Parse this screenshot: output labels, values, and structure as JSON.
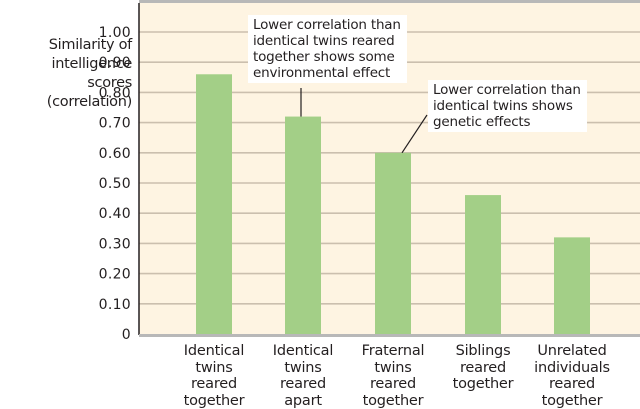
{
  "chart_data": {
    "type": "bar",
    "title": "",
    "ylabel": "Similarity of intelligence scores (correlation)",
    "ylabel_lines": [
      "Similarity of",
      "intelligence",
      "scores",
      "(correlation)"
    ],
    "xlabel": "",
    "ylim": [
      0,
      1.0
    ],
    "yticks": [
      0,
      0.1,
      0.2,
      0.3,
      0.4,
      0.5,
      0.6,
      0.7,
      0.8,
      0.9,
      1.0
    ],
    "ytick_labels": [
      "0",
      "0.10",
      "0.20",
      "0.30",
      "0.40",
      "0.50",
      "0.60",
      "0.70",
      "0.80",
      "0.90",
      "1.00"
    ],
    "grid": true,
    "categories": [
      "Identical twins reared together",
      "Identical twins reared apart",
      "Fraternal twins reared together",
      "Siblings reared together",
      "Unrelated individuals reared together"
    ],
    "category_lines": [
      [
        "Identical",
        "twins",
        "reared",
        "together"
      ],
      [
        "Identical",
        "twins",
        "reared",
        "apart"
      ],
      [
        "Fraternal",
        "twins",
        "reared",
        "together"
      ],
      [
        "Siblings",
        "reared",
        "together"
      ],
      [
        "Unrelated",
        "individuals",
        "reared",
        "together"
      ]
    ],
    "values": [
      0.86,
      0.72,
      0.6,
      0.46,
      0.32
    ],
    "annotations": [
      {
        "target_category": 1,
        "text": "Lower correlation than identical twins reared together shows some environmental effect",
        "lines": [
          "Lower correlation than",
          "identical twins reared",
          "together shows some",
          "environmental effect"
        ]
      },
      {
        "target_category": 2,
        "text": "Lower correlation than identical twins shows genetic effects",
        "lines": [
          "Lower correlation than",
          "identical twins shows",
          "genetic effects"
        ]
      }
    ],
    "colors": {
      "bar": "#a3cf87",
      "plot_background": "#fef4e2",
      "gridline": "#cbbfae",
      "frame_top": "#b8b8b8",
      "axis": "#231f20"
    }
  }
}
